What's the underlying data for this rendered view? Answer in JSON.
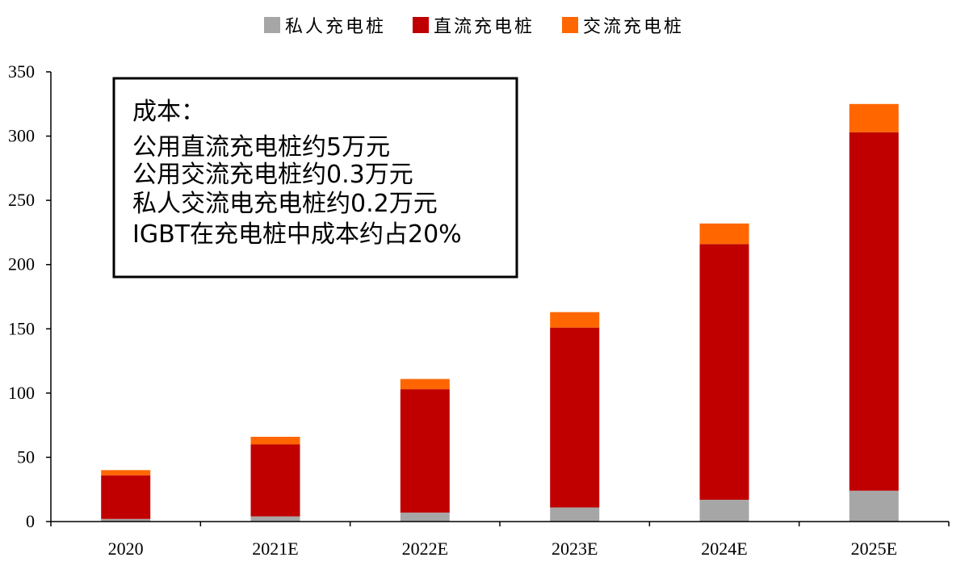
{
  "chart_data": {
    "type": "bar",
    "stacked": true,
    "categories": [
      "2020",
      "2021E",
      "2022E",
      "2023E",
      "2024E",
      "2025E"
    ],
    "series": [
      {
        "name": "私人充电桩",
        "color": "#a6a6a6",
        "values": [
          2,
          4,
          7,
          11,
          17,
          24
        ]
      },
      {
        "name": "直流充电桩",
        "color": "#c00000",
        "values": [
          34,
          56,
          96,
          140,
          199,
          279
        ]
      },
      {
        "name": "交流充电桩",
        "color": "#ff6600",
        "values": [
          4,
          6,
          8,
          12,
          16,
          22
        ]
      }
    ],
    "ylim": [
      0,
      350
    ],
    "yticks": [
      0,
      50,
      100,
      150,
      200,
      250,
      300,
      350
    ],
    "legend_position": "top-center",
    "grid": false,
    "annotation": {
      "lines": [
        "成本：",
        "公用直流充电桩约5万元",
        "公用交流充电桩约0.3万元",
        "私人交流电充电桩约0.2万元",
        "IGBT在充电桩中成本约占20%"
      ]
    }
  }
}
